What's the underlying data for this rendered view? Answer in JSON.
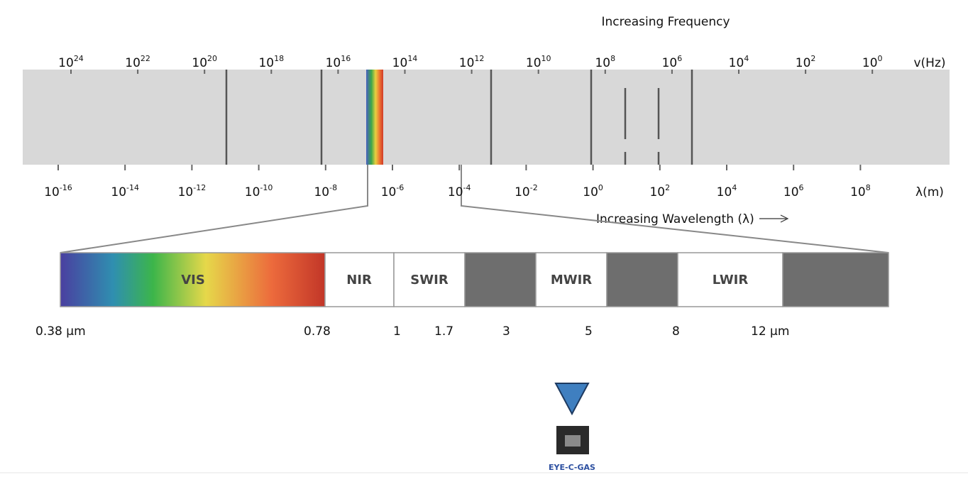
{
  "frequency": {
    "title": "Increasing Frequency",
    "unit": "v(Hz)",
    "ticks": [
      {
        "base": "10",
        "exp": "24"
      },
      {
        "base": "10",
        "exp": "22"
      },
      {
        "base": "10",
        "exp": "20"
      },
      {
        "base": "10",
        "exp": "18"
      },
      {
        "base": "10",
        "exp": "16"
      },
      {
        "base": "10",
        "exp": "14"
      },
      {
        "base": "10",
        "exp": "12"
      },
      {
        "base": "10",
        "exp": "10"
      },
      {
        "base": "10",
        "exp": "8"
      },
      {
        "base": "10",
        "exp": "6"
      },
      {
        "base": "10",
        "exp": "4"
      },
      {
        "base": "10",
        "exp": "2"
      },
      {
        "base": "10",
        "exp": "0"
      }
    ]
  },
  "wavelength": {
    "title": "Increasing Wavelength (λ)",
    "unit": "λ(m)",
    "ticks": [
      {
        "base": "10",
        "exp": "-16"
      },
      {
        "base": "10",
        "exp": "-14"
      },
      {
        "base": "10",
        "exp": "-12"
      },
      {
        "base": "10",
        "exp": "-10"
      },
      {
        "base": "10",
        "exp": "-8"
      },
      {
        "base": "10",
        "exp": "-6"
      },
      {
        "base": "10",
        "exp": "-4"
      },
      {
        "base": "10",
        "exp": "-2"
      },
      {
        "base": "10",
        "exp": "0"
      },
      {
        "base": "10",
        "exp": "2"
      },
      {
        "base": "10",
        "exp": "4"
      },
      {
        "base": "10",
        "exp": "6"
      },
      {
        "base": "10",
        "exp": "8"
      }
    ]
  },
  "bands": [
    "VIS",
    "NIR",
    "SWIR",
    "MWIR",
    "LWIR"
  ],
  "band_scale": [
    "0.38 μm",
    "0.78",
    "1",
    "1.7",
    "3",
    "5",
    "8",
    "12 μm"
  ],
  "product": "EYE-C-GAS"
}
